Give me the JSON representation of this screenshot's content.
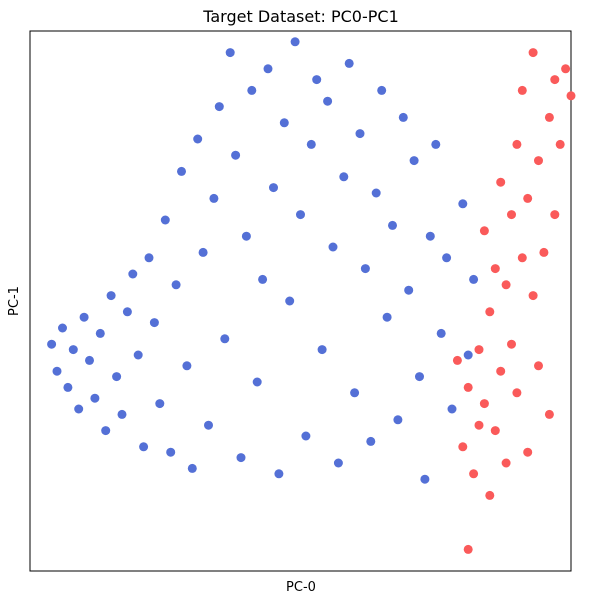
{
  "chart_data": {
    "type": "scatter",
    "title": "Target Dataset: PC0-PC1",
    "xlabel": "PC-0",
    "ylabel": "PC-1",
    "xlim": [
      -5.0,
      5.0
    ],
    "ylim": [
      -5.0,
      5.0
    ],
    "grid": false,
    "legend": "none",
    "ticks": "hidden",
    "series": [
      {
        "color": "#5470d6",
        "points": [
          [
            -4.6,
            -0.8
          ],
          [
            -4.5,
            -1.3
          ],
          [
            -4.4,
            -0.5
          ],
          [
            -4.3,
            -1.6
          ],
          [
            -4.2,
            -0.9
          ],
          [
            -4.1,
            -2.0
          ],
          [
            -4.0,
            -0.3
          ],
          [
            -3.9,
            -1.1
          ],
          [
            -3.8,
            -1.8
          ],
          [
            -3.7,
            -0.6
          ],
          [
            -3.6,
            -2.4
          ],
          [
            -3.5,
            0.1
          ],
          [
            -3.4,
            -1.4
          ],
          [
            -3.3,
            -2.1
          ],
          [
            -3.2,
            -0.2
          ],
          [
            -3.1,
            0.5
          ],
          [
            -3.0,
            -1.0
          ],
          [
            -2.9,
            -2.7
          ],
          [
            -2.8,
            0.8
          ],
          [
            -2.7,
            -0.4
          ],
          [
            -2.6,
            -1.9
          ],
          [
            -2.5,
            1.5
          ],
          [
            -2.4,
            -2.8
          ],
          [
            -2.3,
            0.3
          ],
          [
            -2.2,
            2.4
          ],
          [
            -2.1,
            -1.2
          ],
          [
            -2.0,
            -3.1
          ],
          [
            -1.9,
            3.0
          ],
          [
            -1.8,
            0.9
          ],
          [
            -1.7,
            -2.3
          ],
          [
            -1.6,
            1.9
          ],
          [
            -1.5,
            3.6
          ],
          [
            -1.4,
            -0.7
          ],
          [
            -1.3,
            4.6
          ],
          [
            -1.2,
            2.7
          ],
          [
            -1.1,
            -2.9
          ],
          [
            -1.0,
            1.2
          ],
          [
            -0.9,
            3.9
          ],
          [
            -0.8,
            -1.5
          ],
          [
            -0.7,
            0.4
          ],
          [
            -0.6,
            4.3
          ],
          [
            -0.5,
            2.1
          ],
          [
            -0.4,
            -3.2
          ],
          [
            -0.3,
            3.3
          ],
          [
            -0.2,
            0.0
          ],
          [
            -0.1,
            4.8
          ],
          [
            0.0,
            1.6
          ],
          [
            0.1,
            -2.5
          ],
          [
            0.2,
            2.9
          ],
          [
            0.3,
            4.1
          ],
          [
            0.4,
            -0.9
          ],
          [
            0.5,
            3.7
          ],
          [
            0.6,
            1.0
          ],
          [
            0.7,
            -3.0
          ],
          [
            0.8,
            2.3
          ],
          [
            0.9,
            4.4
          ],
          [
            1.0,
            -1.7
          ],
          [
            1.1,
            3.1
          ],
          [
            1.2,
            0.6
          ],
          [
            1.3,
            -2.6
          ],
          [
            1.4,
            2.0
          ],
          [
            1.5,
            3.9
          ],
          [
            1.6,
            -0.3
          ],
          [
            1.7,
            1.4
          ],
          [
            1.8,
            -2.2
          ],
          [
            1.9,
            3.4
          ],
          [
            2.0,
            0.2
          ],
          [
            2.1,
            2.6
          ],
          [
            2.2,
            -1.4
          ],
          [
            2.3,
            -3.3
          ],
          [
            2.4,
            1.2
          ],
          [
            2.5,
            2.9
          ],
          [
            2.6,
            -0.6
          ],
          [
            2.7,
            0.8
          ],
          [
            2.8,
            -2.0
          ],
          [
            3.0,
            1.8
          ],
          [
            3.1,
            -1.0
          ],
          [
            3.2,
            0.4
          ]
        ]
      },
      {
        "color": "#fa5a5a",
        "points": [
          [
            2.9,
            -1.1
          ],
          [
            3.0,
            -2.7
          ],
          [
            3.1,
            -1.6
          ],
          [
            3.1,
            -4.6
          ],
          [
            3.2,
            -3.2
          ],
          [
            3.3,
            -0.9
          ],
          [
            3.3,
            -2.3
          ],
          [
            3.4,
            -1.9
          ],
          [
            3.4,
            1.3
          ],
          [
            3.5,
            -0.2
          ],
          [
            3.5,
            -3.6
          ],
          [
            3.6,
            0.6
          ],
          [
            3.6,
            -2.4
          ],
          [
            3.7,
            -1.3
          ],
          [
            3.7,
            2.2
          ],
          [
            3.8,
            0.3
          ],
          [
            3.8,
            -3.0
          ],
          [
            3.9,
            1.6
          ],
          [
            3.9,
            -0.8
          ],
          [
            4.0,
            2.9
          ],
          [
            4.0,
            -1.7
          ],
          [
            4.1,
            3.9
          ],
          [
            4.1,
            0.8
          ],
          [
            4.2,
            -2.8
          ],
          [
            4.2,
            1.9
          ],
          [
            4.3,
            0.1
          ],
          [
            4.3,
            4.6
          ],
          [
            4.4,
            -1.2
          ],
          [
            4.4,
            2.6
          ],
          [
            4.5,
            0.9
          ],
          [
            4.6,
            3.4
          ],
          [
            4.6,
            -2.1
          ],
          [
            4.7,
            4.1
          ],
          [
            4.7,
            1.6
          ],
          [
            4.8,
            2.9
          ],
          [
            4.9,
            4.3
          ],
          [
            5.0,
            3.8
          ]
        ]
      }
    ]
  }
}
